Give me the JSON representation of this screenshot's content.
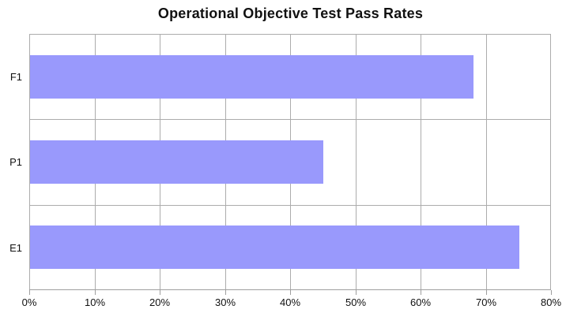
{
  "chart_data": {
    "type": "bar",
    "orientation": "horizontal",
    "title": "Operational Objective Test Pass Rates",
    "categories": [
      "F1",
      "P1",
      "E1"
    ],
    "values": [
      68,
      45,
      75
    ],
    "unit": "%",
    "xlabel": "",
    "ylabel": "",
    "xlim": [
      0,
      80
    ],
    "x_tick_labels": [
      "0%",
      "10%",
      "20%",
      "30%",
      "40%",
      "50%",
      "60%",
      "70%",
      "80%"
    ],
    "grid": true,
    "legend": false,
    "colors": {
      "bar": "#9999FC",
      "gridline": "#ACACAC",
      "axis": "#9E9E9E",
      "text": "#111111",
      "background": "#FFFFFF"
    }
  }
}
